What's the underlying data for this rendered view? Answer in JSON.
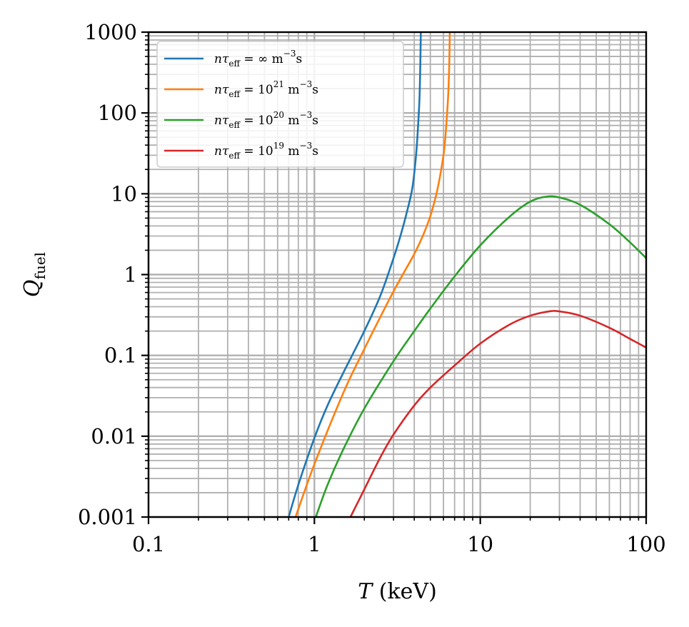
{
  "chart_data": {
    "type": "line",
    "xscale": "log",
    "yscale": "log",
    "xlim": [
      0.1,
      100
    ],
    "ylim": [
      0.001,
      1000
    ],
    "xlabel": {
      "symbol": "T",
      "unit": "(keV)"
    },
    "ylabel": {
      "symbol": "Q",
      "sub": "fuel"
    },
    "xticks": [
      {
        "value": 0.1,
        "label": "0.1"
      },
      {
        "value": 1,
        "label": "1"
      },
      {
        "value": 10,
        "label": "10"
      },
      {
        "value": 100,
        "label": "100"
      }
    ],
    "yticks": [
      {
        "value": 0.001,
        "label": "0.001"
      },
      {
        "value": 0.01,
        "label": "0.01"
      },
      {
        "value": 0.1,
        "label": "0.1"
      },
      {
        "value": 1,
        "label": "1"
      },
      {
        "value": 10,
        "label": "10"
      },
      {
        "value": 100,
        "label": "100"
      },
      {
        "value": 1000,
        "label": "1000"
      }
    ],
    "grid": "major-and-minor",
    "legend_position": "top-left",
    "series": [
      {
        "name": "nτeff = ∞ m⁻³s",
        "legend": {
          "lhs": "nτ",
          "sub": "eff",
          "eq": " = ",
          "base": "∞",
          "exp": "",
          "unit": "  m",
          "unitexp": "−3",
          "tail": "s"
        },
        "color": "#1f77b4",
        "x": [
          0.7,
          0.8,
          1.0,
          1.2,
          1.5,
          2.0,
          2.5,
          3.0,
          3.3,
          3.6,
          3.9,
          4.1,
          4.2,
          4.3,
          4.35,
          4.38
        ],
        "y": [
          0.001,
          0.0025,
          0.0095,
          0.024,
          0.062,
          0.2,
          0.55,
          1.6,
          3.0,
          5.8,
          12,
          30,
          60,
          150,
          400,
          1000
        ]
      },
      {
        "name": "nτeff = 10^21 m⁻³s",
        "legend": {
          "lhs": "nτ",
          "sub": "eff",
          "eq": " = ",
          "base": "10",
          "exp": "21",
          "unit": "  m",
          "unitexp": "−3",
          "tail": "s"
        },
        "color": "#ff7f0e",
        "x": [
          0.77,
          1.0,
          1.5,
          2.0,
          2.5,
          3.0,
          3.5,
          4.0,
          4.5,
          5.0,
          5.5,
          6.0,
          6.2,
          6.4,
          6.5,
          6.55
        ],
        "y": [
          0.001,
          0.0045,
          0.035,
          0.12,
          0.3,
          0.62,
          1.1,
          1.8,
          3.0,
          5.3,
          11,
          30,
          60,
          160,
          400,
          1000
        ]
      },
      {
        "name": "nτeff = 10^20 m⁻³s",
        "legend": {
          "lhs": "nτ",
          "sub": "eff",
          "eq": " = ",
          "base": "10",
          "exp": "20",
          "unit": "  m",
          "unitexp": "−3",
          "tail": "s"
        },
        "color": "#2ca02c",
        "x": [
          1.02,
          1.2,
          1.5,
          2.0,
          3.0,
          4.0,
          5.0,
          7.0,
          10,
          15,
          20,
          25,
          30,
          40,
          60,
          80,
          100
        ],
        "y": [
          0.001,
          0.0025,
          0.007,
          0.022,
          0.085,
          0.2,
          0.38,
          0.95,
          2.3,
          5.2,
          8.0,
          9.2,
          9.0,
          7.3,
          4.2,
          2.5,
          1.6
        ]
      },
      {
        "name": "nτeff = 10^19 m⁻³s",
        "legend": {
          "lhs": "nτ",
          "sub": "eff",
          "eq": " = ",
          "base": "10",
          "exp": "19",
          "unit": "  m",
          "unitexp": "−3",
          "tail": "s"
        },
        "color": "#d62728",
        "x": [
          1.65,
          2.0,
          2.5,
          3.0,
          4.0,
          5.0,
          7.0,
          10,
          15,
          20,
          26,
          30,
          40,
          60,
          80,
          100
        ],
        "y": [
          0.001,
          0.0022,
          0.0055,
          0.0105,
          0.024,
          0.04,
          0.075,
          0.14,
          0.24,
          0.31,
          0.35,
          0.35,
          0.31,
          0.22,
          0.16,
          0.125
        ]
      }
    ]
  }
}
